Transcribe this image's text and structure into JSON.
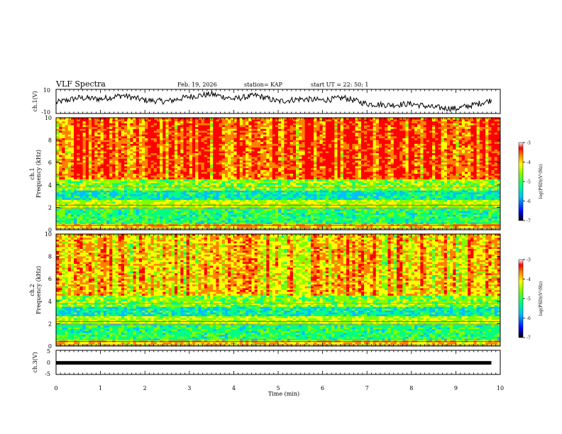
{
  "header": {
    "title": "VLF Spectra",
    "date": "Feb. 19, 2026",
    "station": "station= KAP",
    "start": "start  UT  =   22: 50: 1"
  },
  "chart_data": [
    {
      "type": "line",
      "name": "ch1-voltage",
      "ylabel": "ch.1(V)",
      "ylim": [
        -10,
        10
      ],
      "yticks": [
        10,
        -10
      ],
      "x": [
        0,
        0.5,
        1.0,
        1.5,
        2.0,
        2.5,
        3.0,
        3.5,
        4.0,
        4.5,
        5.0,
        5.5,
        6.0,
        6.5,
        7.0,
        7.5,
        8.0,
        8.5,
        9.0,
        9.5,
        9.8
      ],
      "values": [
        -1,
        3,
        2,
        5,
        1,
        0,
        4,
        6,
        2,
        5,
        0,
        2,
        1,
        3,
        -2,
        -3,
        -2,
        -5,
        -6,
        -2,
        1
      ]
    },
    {
      "type": "heatmap",
      "name": "ch1-spectrogram",
      "ylabel": "ch.1\nFrequency (kHz)",
      "ylim": [
        0,
        10
      ],
      "yticks": [
        0,
        2,
        4,
        6,
        8,
        10
      ],
      "xlim": [
        0,
        10
      ],
      "colorbar": {
        "label": "log(PSD)(V²/Hz)",
        "range": [
          -7,
          -3
        ],
        "ticks": [
          "-3",
          "-4",
          "-5",
          "-6",
          "-7"
        ]
      }
    },
    {
      "type": "heatmap",
      "name": "ch2-spectrogram",
      "ylabel": "ch.2\nFrequency (kHz)",
      "ylim": [
        0,
        10
      ],
      "yticks": [
        0,
        2,
        4,
        6,
        8,
        10
      ],
      "xlim": [
        0,
        10
      ],
      "colorbar": {
        "label": "log(PSD)(V²/Hz)",
        "range": [
          -7,
          -3
        ],
        "ticks": [
          "-3",
          "-4",
          "-5",
          "-6",
          "-7"
        ]
      }
    },
    {
      "type": "line",
      "name": "ch3-voltage",
      "ylabel": "ch.3(V)",
      "ylim": [
        -5,
        5
      ],
      "yticks": [
        5,
        0,
        -5
      ],
      "x": [
        0,
        9.8
      ],
      "values": [
        -0.2,
        -0.2
      ]
    }
  ],
  "x_axis": {
    "label": "Time (min)",
    "range": [
      0,
      10
    ],
    "ticks": [
      "0",
      "1",
      "2",
      "3",
      "4",
      "5",
      "6",
      "7",
      "8",
      "9",
      "10"
    ]
  },
  "palette": {
    "spectrum": [
      "#000080",
      "#0000ff",
      "#00bfff",
      "#00ff80",
      "#80ff00",
      "#ffff00",
      "#ff8000",
      "#ff0000",
      "#ffffff"
    ]
  }
}
